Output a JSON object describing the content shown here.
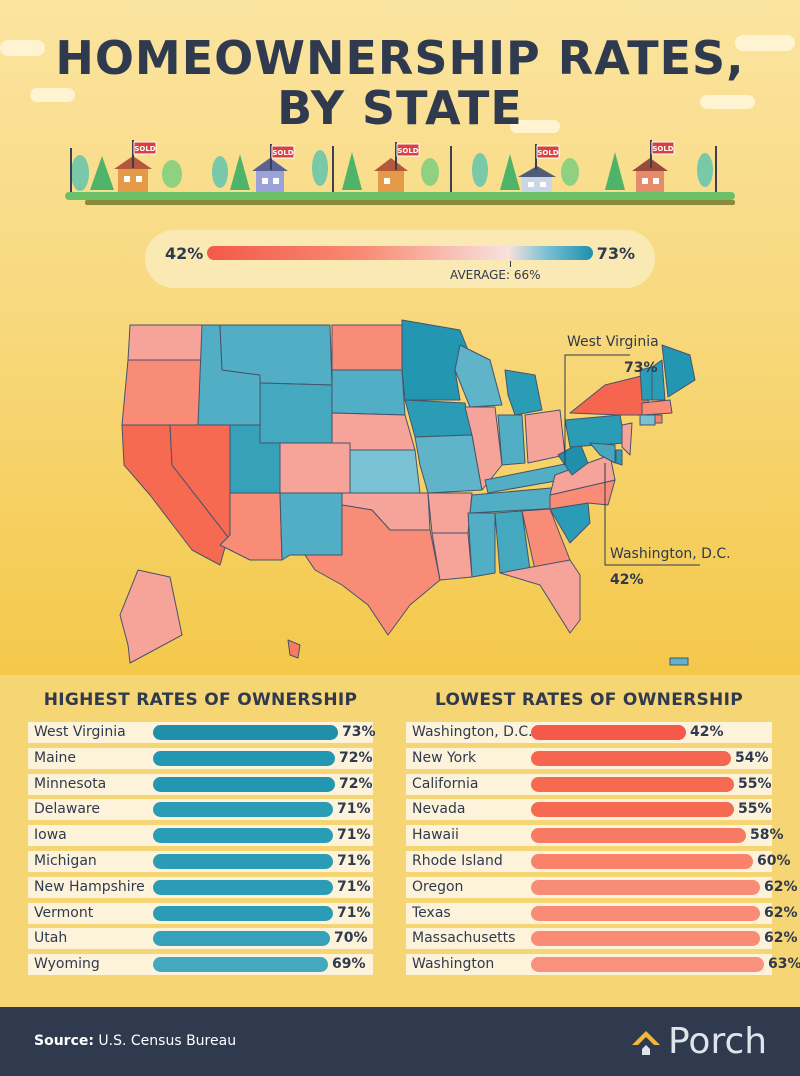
{
  "title_line1": "HOMEOWNERSHIP RATES,",
  "title_line2": "BY STATE",
  "legend": {
    "min": "42%",
    "max": "73%",
    "average": "AVERAGE: 66%"
  },
  "callouts": [
    {
      "label": "West Virginia",
      "value": "73%"
    },
    {
      "label": "Washington, D.C.",
      "value": "42%"
    }
  ],
  "signs": [
    "SOLD",
    "SOLD",
    "SOLD",
    "SOLD",
    "SOLD"
  ],
  "highest": {
    "title": "HIGHEST RATES OF OWNERSHIP",
    "rows": [
      {
        "state": "West Virginia",
        "value": 73,
        "label": "73%",
        "color": "#1f8fab"
      },
      {
        "state": "Maine",
        "value": 72,
        "label": "72%",
        "color": "#2396b1"
      },
      {
        "state": "Minnesota",
        "value": 72,
        "label": "72%",
        "color": "#2396b1"
      },
      {
        "state": "Delaware",
        "value": 71,
        "label": "71%",
        "color": "#2b9cb6"
      },
      {
        "state": "Iowa",
        "value": 71,
        "label": "71%",
        "color": "#2b9cb6"
      },
      {
        "state": "Michigan",
        "value": 71,
        "label": "71%",
        "color": "#2b9cb6"
      },
      {
        "state": "New Hampshire",
        "value": 71,
        "label": "71%",
        "color": "#2b9cb6"
      },
      {
        "state": "Vermont",
        "value": 71,
        "label": "71%",
        "color": "#2b9cb6"
      },
      {
        "state": "Utah",
        "value": 70,
        "label": "70%",
        "color": "#36a2ba"
      },
      {
        "state": "Wyoming",
        "value": 69,
        "label": "69%",
        "color": "#44a9bf"
      }
    ]
  },
  "lowest": {
    "title": "LOWEST RATES OF OWNERSHIP",
    "rows": [
      {
        "state": "Washington, D.C.",
        "value": 42,
        "label": "42%",
        "color": "#f4594a"
      },
      {
        "state": "New York",
        "value": 54,
        "label": "54%",
        "color": "#f6654f"
      },
      {
        "state": "California",
        "value": 55,
        "label": "55%",
        "color": "#f66a52"
      },
      {
        "state": "Nevada",
        "value": 55,
        "label": "55%",
        "color": "#f66a52"
      },
      {
        "state": "Hawaii",
        "value": 58,
        "label": "58%",
        "color": "#f77a62"
      },
      {
        "state": "Rhode Island",
        "value": 60,
        "label": "60%",
        "color": "#f8826a"
      },
      {
        "state": "Oregon",
        "value": 62,
        "label": "62%",
        "color": "#f88c76"
      },
      {
        "state": "Texas",
        "value": 62,
        "label": "62%",
        "color": "#f88c76"
      },
      {
        "state": "Massachusetts",
        "value": 62,
        "label": "62%",
        "color": "#f88c76"
      },
      {
        "state": "Washington",
        "value": 63,
        "label": "63%",
        "color": "#f9927c"
      }
    ]
  },
  "footer": {
    "source_label": "Source:",
    "source_text": "U.S. Census Bureau",
    "brand": "Porch"
  },
  "colors": {
    "navy": "#2f3a4f",
    "low": "#f4594a",
    "high": "#1e8fae",
    "pink": "#f6a39a",
    "light_blue": "#5fb4c9"
  }
}
